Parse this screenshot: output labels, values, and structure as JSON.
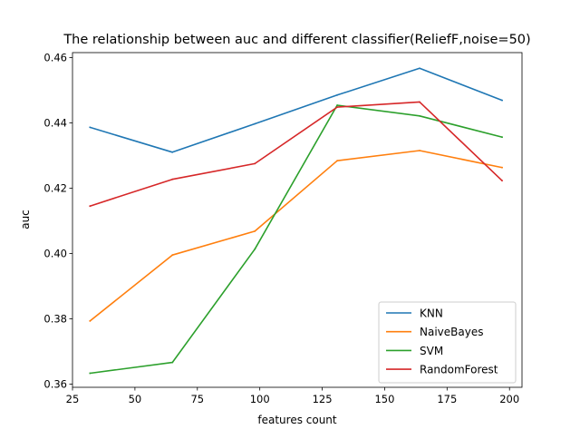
{
  "colors": {
    "KNN": "#1f77b4",
    "NaiveBayes": "#ff7f0e",
    "SVM": "#2ca02c",
    "RandomForest": "#d62728"
  },
  "chart_data": {
    "type": "line",
    "title": "The relationship between auc and different classifier(ReliefF,noise=50)",
    "xlabel": "features count",
    "ylabel": "auc",
    "xlim": [
      25,
      205
    ],
    "ylim": [
      0.359,
      0.4615
    ],
    "xticks": [
      25,
      50,
      75,
      100,
      125,
      150,
      175,
      200
    ],
    "yticks": [
      0.36,
      0.38,
      0.4,
      0.42,
      0.44,
      0.46
    ],
    "ytick_labels": [
      "0.36",
      "0.38",
      "0.40",
      "0.42",
      "0.44",
      "0.46"
    ],
    "x": [
      32,
      65,
      98,
      131,
      164,
      197
    ],
    "legend_position": "lower right",
    "grid": false,
    "series": [
      {
        "name": "KNN",
        "values": [
          0.4386,
          0.431,
          0.4397,
          0.4485,
          0.4567,
          0.4469
        ]
      },
      {
        "name": "NaiveBayes",
        "values": [
          0.3793,
          0.3995,
          0.4068,
          0.4284,
          0.4315,
          0.4263
        ]
      },
      {
        "name": "SVM",
        "values": [
          0.3633,
          0.3666,
          0.4013,
          0.4454,
          0.4421,
          0.4356
        ]
      },
      {
        "name": "RandomForest",
        "values": [
          0.4145,
          0.4227,
          0.4275,
          0.4448,
          0.4464,
          0.4223
        ]
      }
    ]
  }
}
